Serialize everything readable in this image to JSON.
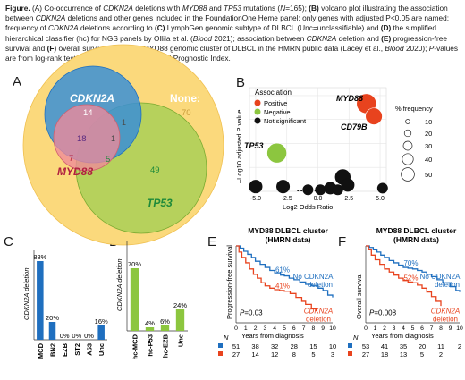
{
  "caption": {
    "s1": "Figure.",
    "s2": " (A) Co-occurrence of ",
    "s3": "CDKN2A",
    "s4": " deletions with ",
    "s5": "MYD88",
    "s6": " and ",
    "s7": "TP53",
    "s8": " mutations (",
    "s9": "N",
    "s10": "=165); ",
    "s11": "(B)",
    "s12": " volcano plot illustrating the association between ",
    "s13": "CDKN2A",
    "s14": " deletions and other genes included in the FoundationOne Heme panel; only genes with adjusted P<0.05 are named; frequency of ",
    "s15": "CDKN2A",
    "s16": " deletions according to ",
    "s17": "(C)",
    "s18": " LymphGen genomic subtype of DLBCL (Unc=unclassifiable) and ",
    "s19": "(D)",
    "s20": " the simplified hierarchical classifier (hc) for NGS panels by Ollila et al. (",
    "s21": "Blood",
    "s22": " 2021); association between ",
    "s23": "CDKN2A",
    "s24": " deletion and ",
    "s25": "(E)",
    "s26": " progression-free survival and ",
    "s27": "(F)",
    "s28": " overall survival within the MYD88 genomic cluster of DLBCL in the HMRN public data (Lacey et al., ",
    "s29": "Blood",
    "s30": " 2020); ",
    "s31": "P",
    "s32": "-values are from log-rank test stratified by the International Prognostic Index."
  },
  "colors": {
    "blue": "#1f6fbf",
    "orange": "#e8431e",
    "green": "#8cc63f",
    "yellow": "#fbd97c",
    "pink": "#f0899a"
  },
  "panelA": {
    "letter": "A",
    "sets": [
      {
        "name": "CDKN2A",
        "count": "14"
      },
      {
        "name": "MYD88",
        "count": "7"
      },
      {
        "name": "TP53",
        "count": "49"
      }
    ],
    "none_label": "None:",
    "none_count": "70",
    "overlaps": {
      "cdkn2a_myd88": "18",
      "all_three": "1",
      "myd88_tp53": "5",
      "cdkn2a_tp53": "1"
    }
  },
  "panelB": {
    "letter": "B",
    "legend_title": "Association",
    "legend_items": [
      "Positive",
      "Negative",
      "Not significant"
    ],
    "size_title": "% frequency",
    "size_values": [
      "10",
      "20",
      "30",
      "40",
      "50"
    ],
    "ylabel": "–Log10 adjusted P value",
    "xlabel": "Log2 Odds Ratio",
    "xticks": [
      "-5.0",
      "-2.5",
      "0.0",
      "2.5",
      "5.0"
    ],
    "labels": [
      "MYD88",
      "CD79B",
      "TP53"
    ]
  },
  "chart_data": [
    {
      "panel": "B",
      "type": "scatter",
      "xlabel": "Log2 Odds Ratio",
      "ylabel": "–Log10 adjusted P value",
      "xlim": [
        -5.5,
        5.5
      ],
      "grid": true,
      "points": [
        {
          "name": "MYD88",
          "x": 3.9,
          "y": 5.5,
          "frequency": 30,
          "association": "Positive"
        },
        {
          "name": "CD79B",
          "x": 4.5,
          "y": 4.7,
          "frequency": 20,
          "association": "Positive"
        },
        {
          "name": "TP53",
          "x": -3.3,
          "y": 2.4,
          "frequency": 30,
          "association": "Negative"
        },
        {
          "x": -5.0,
          "y": 0.3,
          "frequency": 10,
          "association": "Not significant"
        },
        {
          "x": -2.8,
          "y": 0.3,
          "frequency": 10,
          "association": "Not significant"
        },
        {
          "x": -0.8,
          "y": 0.1,
          "frequency": 5,
          "association": "Not significant"
        },
        {
          "x": 0.2,
          "y": 0.1,
          "frequency": 5,
          "association": "Not significant"
        },
        {
          "x": 1.0,
          "y": 0.2,
          "frequency": 8,
          "association": "Not significant"
        },
        {
          "x": 1.6,
          "y": 0.1,
          "frequency": 5,
          "association": "Not significant"
        },
        {
          "x": 2.0,
          "y": 0.9,
          "frequency": 15,
          "association": "Not significant"
        },
        {
          "x": 2.4,
          "y": 0.4,
          "frequency": 10,
          "association": "Not significant"
        },
        {
          "x": 5.2,
          "y": 0.2,
          "frequency": 5,
          "association": "Not significant"
        }
      ]
    },
    {
      "panel": "C",
      "type": "bar",
      "ylabel": "CDKN2A deletion",
      "categories": [
        "MCD",
        "BN2",
        "EZB",
        "ST2",
        "A53",
        "Unc"
      ],
      "values": [
        88,
        20,
        0,
        0,
        0,
        16
      ],
      "value_labels": [
        "88%",
        "20%",
        "0%",
        "0%",
        "0%",
        "16%"
      ],
      "ylim": [
        0,
        100
      ]
    },
    {
      "panel": "D",
      "type": "bar",
      "ylabel": "CDKN2A deletion",
      "categories": [
        "hc-MCD",
        "hc-P53",
        "hc-EZB",
        "Unc"
      ],
      "values": [
        70,
        4,
        6,
        24
      ],
      "value_labels": [
        "70%",
        "4%",
        "6%",
        "24%"
      ],
      "ylim": [
        0,
        100
      ]
    },
    {
      "panel": "E",
      "type": "line",
      "title": "MYD88 DLBCL cluster",
      "subtitle": "(HMRN data)",
      "ylabel": "Progression-free survival",
      "xlabel": "Years from diagnosis",
      "x_ticks": [
        "0",
        "1",
        "2",
        "3",
        "4",
        "5",
        "6",
        "7",
        "8",
        "9",
        "10"
      ],
      "series": [
        {
          "name": "No CDKN2A deletion",
          "annotation": "61%",
          "at_risk": [
            "51",
            "38",
            "32",
            "28",
            "15",
            "10"
          ],
          "x": [
            0,
            0.4,
            0.8,
            1.2,
            1.6,
            2.0,
            2.5,
            3.0,
            3.5,
            4.0,
            4.6,
            5.0,
            5.5,
            6.0,
            6.6,
            7.2,
            7.8,
            8.5,
            9.0,
            9.5,
            10
          ],
          "y": [
            1.0,
            0.97,
            0.93,
            0.89,
            0.85,
            0.8,
            0.76,
            0.72,
            0.68,
            0.65,
            0.62,
            0.61,
            0.58,
            0.56,
            0.53,
            0.5,
            0.48,
            0.45,
            0.42,
            0.36,
            0.33
          ]
        },
        {
          "name": "CDKN2A deletion",
          "annotation": "41%",
          "at_risk": [
            "27",
            "14",
            "12",
            "8",
            "5",
            "3"
          ],
          "x": [
            0,
            0.3,
            0.6,
            1.0,
            1.4,
            1.8,
            2.2,
            2.6,
            3.0,
            3.5,
            4.0,
            4.5,
            5.0,
            5.6,
            6.2,
            6.8,
            7.2,
            7.8,
            8.3
          ],
          "y": [
            1.0,
            0.92,
            0.85,
            0.78,
            0.7,
            0.63,
            0.58,
            0.52,
            0.48,
            0.45,
            0.43,
            0.42,
            0.41,
            0.38,
            0.33,
            0.28,
            0.24,
            0.18,
            0.15
          ]
        }
      ],
      "at_risk_label": "N",
      "pvalue_label": "P",
      "pvalue": "=0.03"
    },
    {
      "panel": "F",
      "type": "line",
      "title": "MYD88 DLBCL cluster",
      "subtitle": "(HMRN data)",
      "ylabel": "Overall survival",
      "xlabel": "Years from diagnosis",
      "x_ticks": [
        "0",
        "1",
        "2",
        "3",
        "4",
        "5",
        "6",
        "7",
        "8",
        "9",
        "10"
      ],
      "series": [
        {
          "name": "No CDKN2A deletion",
          "annotation": "70%",
          "at_risk": [
            "53",
            "41",
            "35",
            "20",
            "11",
            "2"
          ],
          "x": [
            0,
            0.4,
            0.8,
            1.2,
            1.6,
            2.0,
            2.5,
            3.0,
            3.5,
            4.0,
            4.5,
            5.0,
            5.5,
            6.0,
            6.5,
            7.0,
            7.6,
            8.2,
            9.0,
            9.6,
            10
          ],
          "y": [
            1.0,
            0.98,
            0.95,
            0.92,
            0.88,
            0.85,
            0.81,
            0.78,
            0.75,
            0.72,
            0.71,
            0.7,
            0.68,
            0.66,
            0.63,
            0.6,
            0.56,
            0.52,
            0.47,
            0.42,
            0.4
          ]
        },
        {
          "name": "CDKN2A deletion",
          "annotation": "52%",
          "at_risk": [
            "27",
            "18",
            "13",
            "5",
            "2"
          ],
          "x": [
            0,
            0.3,
            0.6,
            1.0,
            1.5,
            2.0,
            2.5,
            3.0,
            3.5,
            4.0,
            4.5,
            5.0,
            5.5,
            6.0,
            6.5,
            7.0,
            7.5,
            8.0
          ],
          "y": [
            1.0,
            0.95,
            0.88,
            0.82,
            0.76,
            0.7,
            0.66,
            0.62,
            0.58,
            0.55,
            0.53,
            0.52,
            0.49,
            0.45,
            0.4,
            0.34,
            0.28,
            0.22
          ]
        }
      ],
      "at_risk_label": "N",
      "pvalue_label": "P",
      "pvalue": "=0.008"
    }
  ],
  "panelE": {
    "letter": "E",
    "legend_no": "No CDKN2A",
    "legend_no2": "deletion",
    "legend_del": "CDKN2A",
    "legend_del2": "deletion"
  },
  "panelF": {
    "letter": "F",
    "legend_no": "No CDKN2A",
    "legend_no2": "deletion",
    "legend_del": "CDKN2A",
    "legend_del2": "deletion"
  },
  "panelC": {
    "letter": "C"
  },
  "panelD": {
    "letter": "D"
  }
}
